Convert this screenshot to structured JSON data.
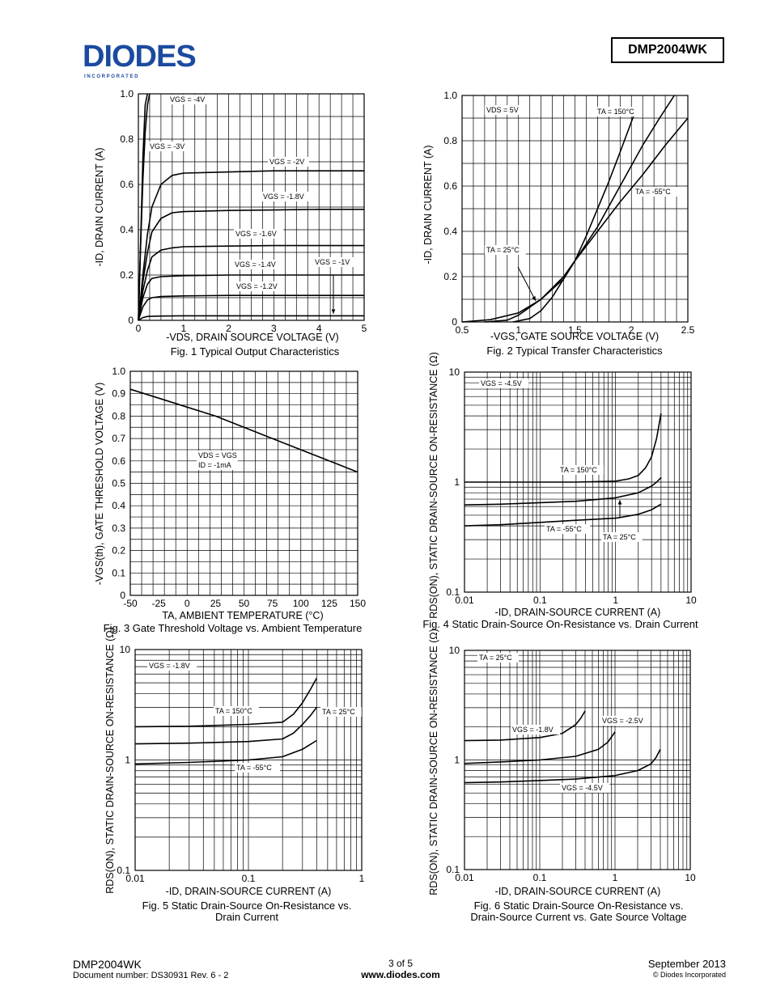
{
  "header": {
    "logo_text": "DIODES",
    "logo_sub": "I N C O R P O R A T E D",
    "part_number": "DMP2004WK"
  },
  "footer": {
    "part": "DMP2004WK",
    "doc": "Document number: DS30931 Rev. 6 - 2",
    "page": "3 of 5",
    "url": "www.diodes.com",
    "date": "September 2013",
    "copyright": "© Diodes Incorporated"
  },
  "captions": {
    "fig1": "Fig. 1  Typical Output Characteristics",
    "fig2": "Fig. 2  Typical Transfer Characteristics",
    "fig3": "Fig. 3  Gate Threshold Voltage vs. Ambient Temperature",
    "fig4": "Fig. 4  Static Drain-Source On-Resistance vs. Drain Current",
    "fig5a": "Fig. 5  Static Drain-Source On-Resistance vs.",
    "fig5b": "Drain Current",
    "fig6a": "Fig. 6  Static Drain-Source On-Resistance vs.",
    "fig6b": "Drain-Source Current vs. Gate Source Voltage"
  },
  "chart_data": [
    {
      "id": "fig1",
      "type": "line",
      "xlabel": "-VDS, DRAIN SOURCE VOLTAGE (V)",
      "ylabel": "-ID, DRAIN CURRENT (A)",
      "xlim": [
        0,
        5
      ],
      "ylim": [
        0,
        1.0
      ],
      "xscale": "linear",
      "yscale": "linear",
      "xticks": [
        0,
        1,
        2,
        3,
        4,
        5
      ],
      "xtick_labels": [
        "0",
        "1",
        "2",
        "3",
        "4",
        "5"
      ],
      "yticks": [
        0,
        0.2,
        0.4,
        0.6,
        0.8,
        1.0
      ],
      "ytick_labels": [
        "0",
        "0.2",
        "0.4",
        "0.6",
        "0.8",
        "1.0"
      ],
      "grid": true,
      "series": [
        {
          "name": "VGS = -4V",
          "x": [
            0,
            0.05,
            0.1,
            0.15,
            0.2
          ],
          "y": [
            0,
            0.35,
            0.72,
            0.95,
            1.0
          ]
        },
        {
          "name": "VGS = -3V",
          "x": [
            0,
            0.05,
            0.1,
            0.15,
            0.2,
            0.25
          ],
          "y": [
            0,
            0.33,
            0.62,
            0.83,
            0.95,
            1.0
          ]
        },
        {
          "name": "VGS = -2V",
          "x": [
            0,
            0.1,
            0.2,
            0.3,
            0.5,
            0.75,
            1,
            2,
            3,
            4,
            5
          ],
          "y": [
            0,
            0.2,
            0.38,
            0.5,
            0.6,
            0.64,
            0.65,
            0.655,
            0.66,
            0.66,
            0.66
          ]
        },
        {
          "name": "VGS = -1.8V",
          "x": [
            0,
            0.1,
            0.2,
            0.3,
            0.5,
            0.75,
            1,
            2,
            3,
            4,
            5
          ],
          "y": [
            0,
            0.17,
            0.3,
            0.39,
            0.45,
            0.475,
            0.48,
            0.485,
            0.487,
            0.49,
            0.49
          ]
        },
        {
          "name": "VGS = -1.6V",
          "x": [
            0,
            0.1,
            0.2,
            0.3,
            0.5,
            0.75,
            1,
            2,
            3,
            4,
            5
          ],
          "y": [
            0,
            0.13,
            0.22,
            0.28,
            0.31,
            0.32,
            0.325,
            0.328,
            0.33,
            0.33,
            0.33
          ]
        },
        {
          "name": "VGS = -1.4V",
          "x": [
            0,
            0.1,
            0.2,
            0.3,
            0.5,
            1,
            2,
            3,
            4,
            5
          ],
          "y": [
            0,
            0.1,
            0.16,
            0.185,
            0.193,
            0.197,
            0.2,
            0.2,
            0.2,
            0.2
          ]
        },
        {
          "name": "VGS = -1.2V",
          "x": [
            0,
            0.1,
            0.2,
            0.3,
            0.5,
            1,
            2,
            3,
            4,
            5
          ],
          "y": [
            0,
            0.06,
            0.09,
            0.1,
            0.105,
            0.108,
            0.11,
            0.11,
            0.11,
            0.11
          ]
        },
        {
          "name": "VGS = -1V",
          "x": [
            0,
            0.1,
            0.2,
            0.5,
            1,
            2,
            3,
            4,
            5
          ],
          "y": [
            0,
            0.012,
            0.017,
            0.019,
            0.02,
            0.02,
            0.02,
            0.02,
            0.02
          ]
        }
      ],
      "annotations": [
        {
          "text": "VGS = -4V"
        },
        {
          "text": "VGS = -3V"
        },
        {
          "text": "VGS = -2V"
        },
        {
          "text": "VGS = -1.8V"
        },
        {
          "text": "VGS = -1.6V"
        },
        {
          "text": "VGS = -1.4V"
        },
        {
          "text": "VGS = -1.2V"
        },
        {
          "text": "VGS = -1V"
        }
      ]
    },
    {
      "id": "fig2",
      "type": "line",
      "xlabel": "-VGS, GATE SOURCE VOLTAGE (V)",
      "ylabel": "-ID, DRAIN CURRENT (A)",
      "xlim": [
        0.5,
        2.5
      ],
      "ylim": [
        0,
        1.0
      ],
      "xscale": "linear",
      "yscale": "linear",
      "xticks": [
        0.5,
        1,
        1.5,
        2,
        2.5
      ],
      "xtick_labels": [
        "0.5",
        "1",
        "1.5",
        "2",
        "2.5"
      ],
      "yticks": [
        0,
        0.2,
        0.4,
        0.6,
        0.8,
        1.0
      ],
      "ytick_labels": [
        "0",
        "0.2",
        "0.4",
        "0.6",
        "0.8",
        "1.0"
      ],
      "grid": true,
      "series": [
        {
          "name": "TA = 150°C",
          "x": [
            0.5,
            0.75,
            1.0,
            1.2,
            1.4,
            1.5,
            1.6,
            1.8,
            1.9,
            2.05
          ],
          "y": [
            0,
            0.01,
            0.04,
            0.1,
            0.2,
            0.27,
            0.38,
            0.62,
            0.75,
            0.95
          ]
        },
        {
          "name": "TA = 25°C",
          "x": [
            0.7,
            0.9,
            1.0,
            1.2,
            1.4,
            1.5,
            1.7,
            1.9,
            2.1,
            2.25,
            2.38
          ],
          "y": [
            0,
            0.008,
            0.03,
            0.1,
            0.19,
            0.27,
            0.42,
            0.6,
            0.78,
            0.9,
            1.0
          ]
        },
        {
          "name": "TA = -55°C",
          "x": [
            0.95,
            1.1,
            1.2,
            1.3,
            1.4,
            1.5,
            1.7,
            1.9,
            2.1,
            2.3,
            2.5
          ],
          "y": [
            0,
            0.015,
            0.05,
            0.11,
            0.19,
            0.27,
            0.4,
            0.53,
            0.65,
            0.78,
            0.9
          ]
        }
      ],
      "annotations": [
        {
          "text": "VDS = 5V"
        },
        {
          "text": "TA = 150°C"
        },
        {
          "text": "TA = -55°C"
        },
        {
          "text": "TA = 25°C"
        }
      ]
    },
    {
      "id": "fig3",
      "type": "line",
      "xlabel": "TA, AMBIENT TEMPERATURE (°C)",
      "ylabel": "-VGS(th), GATE THRESHOLD VOLTAGE (V)",
      "xlim": [
        -50,
        150
      ],
      "ylim": [
        0,
        1.0
      ],
      "xscale": "linear",
      "yscale": "linear",
      "xticks": [
        -50,
        -25,
        0,
        25,
        50,
        75,
        100,
        125,
        150
      ],
      "xtick_labels": [
        "-50",
        "-25",
        "0",
        "25",
        "50",
        "75",
        "100",
        "125",
        "150"
      ],
      "yticks": [
        0,
        0.1,
        0.2,
        0.3,
        0.4,
        0.5,
        0.6,
        0.7,
        0.8,
        0.9,
        1.0
      ],
      "ytick_labels": [
        "0",
        "0.1",
        "0.2",
        "0.3",
        "0.4",
        "0.5",
        "0.6",
        "0.7",
        "0.8",
        "0.9",
        "1.0"
      ],
      "grid": true,
      "series": [
        {
          "name": "VGS(th)",
          "x": [
            -50,
            -25,
            0,
            25,
            50,
            75,
            100,
            125,
            150
          ],
          "y": [
            0.92,
            0.88,
            0.84,
            0.8,
            0.75,
            0.7,
            0.65,
            0.6,
            0.55
          ]
        }
      ],
      "annotations": [
        {
          "text": "VDS = VGS"
        },
        {
          "text": "ID = -1mA"
        }
      ]
    },
    {
      "id": "fig4",
      "type": "line",
      "xlabel": "-ID, DRAIN-SOURCE CURRENT (A)",
      "ylabel": "RDS(ON), STATIC DRAIN-SOURCE ON-RESISTANCE (Ω)",
      "xlim": [
        0.01,
        10
      ],
      "ylim": [
        0.1,
        10
      ],
      "xscale": "log",
      "yscale": "log",
      "xticks": [
        0.01,
        0.1,
        1,
        10
      ],
      "xtick_labels": [
        "0.01",
        "0.1",
        "1",
        "10"
      ],
      "yticks": [
        0.1,
        1,
        10
      ],
      "ytick_labels": [
        "0.1",
        "1",
        "10"
      ],
      "grid": true,
      "series": [
        {
          "name": "TA = 150°C",
          "x": [
            0.01,
            0.03,
            0.1,
            0.3,
            1,
            1.5,
            2,
            2.5,
            3,
            3.5,
            4
          ],
          "y": [
            1.0,
            1.0,
            1.0,
            1.0,
            1.02,
            1.07,
            1.15,
            1.35,
            1.7,
            2.5,
            4.2
          ]
        },
        {
          "name": "TA = 25°C",
          "x": [
            0.01,
            0.03,
            0.1,
            0.3,
            1,
            2,
            3,
            3.5,
            4
          ],
          "y": [
            0.62,
            0.63,
            0.65,
            0.67,
            0.72,
            0.8,
            0.92,
            1.0,
            1.1
          ]
        },
        {
          "name": "TA = -55°C",
          "x": [
            0.01,
            0.03,
            0.1,
            0.3,
            1,
            2,
            3,
            4
          ],
          "y": [
            0.4,
            0.41,
            0.43,
            0.45,
            0.47,
            0.51,
            0.56,
            0.63
          ]
        }
      ],
      "annotations": [
        {
          "text": "VGS = -4.5V"
        },
        {
          "text": "TA = 150°C"
        },
        {
          "text": "TA = -55°C"
        },
        {
          "text": "TA = 25°C"
        }
      ]
    },
    {
      "id": "fig5",
      "type": "line",
      "xlabel": "-ID, DRAIN-SOURCE CURRENT (A)",
      "ylabel": "RDS(ON), STATIC DRAIN-SOURCE ON-RESISTANCE (Ω)",
      "xlim": [
        0.01,
        1
      ],
      "ylim": [
        0.1,
        10
      ],
      "xscale": "log",
      "yscale": "log",
      "xticks": [
        0.01,
        0.1,
        1
      ],
      "xtick_labels": [
        "0.01",
        "0.1",
        "1"
      ],
      "yticks": [
        0.1,
        1,
        10
      ],
      "ytick_labels": [
        "0.1",
        "1",
        "10"
      ],
      "grid": true,
      "series": [
        {
          "name": "TA = 150°C",
          "x": [
            0.01,
            0.03,
            0.1,
            0.2,
            0.25,
            0.3,
            0.35,
            0.4
          ],
          "y": [
            2.0,
            2.02,
            2.1,
            2.2,
            2.6,
            3.3,
            4.3,
            5.5
          ]
        },
        {
          "name": "TA = 25°C",
          "x": [
            0.01,
            0.03,
            0.1,
            0.2,
            0.25,
            0.3,
            0.35,
            0.4
          ],
          "y": [
            1.4,
            1.42,
            1.47,
            1.55,
            1.75,
            2.1,
            2.5,
            3.0
          ]
        },
        {
          "name": "TA = -55°C",
          "x": [
            0.01,
            0.03,
            0.1,
            0.2,
            0.3,
            0.4
          ],
          "y": [
            0.92,
            0.95,
            1.0,
            1.07,
            1.25,
            1.5
          ]
        }
      ],
      "annotations": [
        {
          "text": "VGS = -1.8V"
        },
        {
          "text": "TA = 150°C"
        },
        {
          "text": "TA = 25°C"
        },
        {
          "text": "TA = -55°C"
        }
      ]
    },
    {
      "id": "fig6",
      "type": "line",
      "xlabel": "-ID, DRAIN-SOURCE CURRENT (A)",
      "ylabel": "RDS(ON), STATIC DRAIN-SOURCE ON-RESISTANCE (Ω)",
      "xlim": [
        0.01,
        10
      ],
      "ylim": [
        0.1,
        10
      ],
      "xscale": "log",
      "yscale": "log",
      "xticks": [
        0.01,
        0.1,
        1,
        10
      ],
      "xtick_labels": [
        "0.01",
        "0.1",
        "1",
        "10"
      ],
      "yticks": [
        0.1,
        1,
        10
      ],
      "ytick_labels": [
        "0.1",
        "1",
        "10"
      ],
      "grid": true,
      "series": [
        {
          "name": "VGS = -1.8V",
          "x": [
            0.01,
            0.03,
            0.1,
            0.2,
            0.3,
            0.35,
            0.4
          ],
          "y": [
            1.5,
            1.52,
            1.6,
            1.75,
            2.1,
            2.4,
            2.8
          ]
        },
        {
          "name": "VGS = -2.5V",
          "x": [
            0.01,
            0.03,
            0.1,
            0.3,
            0.6,
            0.8,
            1.0
          ],
          "y": [
            0.93,
            0.96,
            1.0,
            1.08,
            1.25,
            1.45,
            1.8
          ]
        },
        {
          "name": "VGS = -4.5V",
          "x": [
            0.01,
            0.03,
            0.1,
            0.3,
            1,
            2,
            3,
            3.5,
            4
          ],
          "y": [
            0.62,
            0.63,
            0.65,
            0.67,
            0.72,
            0.8,
            0.92,
            1.05,
            1.25
          ]
        }
      ],
      "annotations": [
        {
          "text": "TA = 25°C"
        },
        {
          "text": "VGS = -1.8V"
        },
        {
          "text": "VGS = -2.5V"
        },
        {
          "text": "VGS = -4.5V"
        }
      ]
    }
  ]
}
